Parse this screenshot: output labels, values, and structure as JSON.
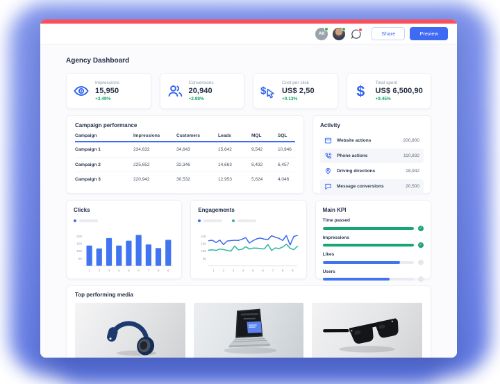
{
  "window": {
    "header": {
      "avatar_initials": "AK",
      "share_label": "Share",
      "preview_label": "Preview"
    },
    "page_title": "Agency Dashboard",
    "kpis": [
      {
        "icon": "eye-icon",
        "label": "Impressions",
        "value": "15,950",
        "delta": "+3.49%"
      },
      {
        "icon": "people-icon",
        "label": "Conversions",
        "value": "20,940",
        "delta": "+2.98%"
      },
      {
        "icon": "dollar-cursor-icon",
        "label": "Cost per click",
        "value": "US$ 2,50",
        "delta": "+0.13%"
      },
      {
        "icon": "dollar-icon",
        "label": "Total spent",
        "value": "US$ 6,500,90",
        "delta": "+9.45%"
      }
    ],
    "campaign_performance": {
      "title": "Campaign performance",
      "columns": [
        "Campaign",
        "Impressions",
        "Customers",
        "Leads",
        "MQL",
        "SQL"
      ],
      "rows": [
        [
          "Campaign 1",
          "234,632",
          "34,643",
          "15,642",
          "9,542",
          "10,946"
        ],
        [
          "Campaign 2",
          "225,652",
          "32,346",
          "14,663",
          "8,432",
          "6,457"
        ],
        [
          "Campaign 3",
          "220,942",
          "30,532",
          "12,953",
          "5,624",
          "4,046"
        ]
      ]
    },
    "activity": {
      "title": "Activity",
      "items": [
        {
          "icon": "browser-icon",
          "label": "Website actions",
          "value": "200,800"
        },
        {
          "icon": "phone-icon",
          "label": "Phone actions",
          "value": "110,832"
        },
        {
          "icon": "location-pin-icon",
          "label": "Driving directions",
          "value": "18,942"
        },
        {
          "icon": "message-icon",
          "label": "Message conversions",
          "value": "20,500"
        }
      ]
    },
    "main_kpi": {
      "title": "Main KPI",
      "items": [
        {
          "label": "Time passed",
          "percent": 100,
          "color": "#17a673",
          "done": true
        },
        {
          "label": "Impressions",
          "percent": 100,
          "color": "#17a673",
          "done": true
        },
        {
          "label": "Likes",
          "percent": 85,
          "color": "#4175f0",
          "done": false
        },
        {
          "label": "Users",
          "percent": 73,
          "color": "#4175f0",
          "done": false
        }
      ]
    },
    "media": {
      "title": "Top performing media",
      "items": [
        "headphones-photo",
        "laptop-website-photo",
        "sunglasses-photo"
      ]
    }
  },
  "chart_data": [
    {
      "type": "bar",
      "title": "Clicks",
      "categories": [
        "1",
        "2",
        "3",
        "4",
        "5",
        "6",
        "7",
        "8",
        "9"
      ],
      "values": [
        137,
        118,
        188,
        137,
        170,
        210,
        145,
        120,
        176
      ],
      "color": "#4175f0",
      "ylim": [
        0,
        250
      ],
      "yticks": [
        50,
        100,
        150,
        200
      ],
      "legend_position": "top-left",
      "grid": false
    },
    {
      "type": "line",
      "title": "Engagements",
      "xticks": [
        "1",
        "2",
        "3",
        "4",
        "5",
        "6",
        "7",
        "8",
        "9"
      ],
      "ylim": [
        0,
        250
      ],
      "yticks": [
        50,
        100,
        150,
        200
      ],
      "legend_position": "top-left",
      "grid": false,
      "series": [
        {
          "name": "engagements-series-1",
          "color": "#3f6af4",
          "values": [
            170,
            173,
            158,
            174,
            144,
            168,
            171,
            173,
            172,
            180,
            191,
            154,
            171,
            183,
            188,
            181,
            178,
            204,
            194,
            186,
            172,
            205,
            141,
            199,
            206
          ]
        },
        {
          "name": "engagements-series-2",
          "color": "#30b5a2",
          "values": [
            106,
            108,
            104,
            114,
            110,
            104,
            99,
            134,
            108,
            112,
            129,
            114,
            120,
            119,
            117,
            114,
            144,
            104,
            121,
            117,
            127,
            147,
            119,
            109,
            133
          ]
        }
      ]
    }
  ]
}
